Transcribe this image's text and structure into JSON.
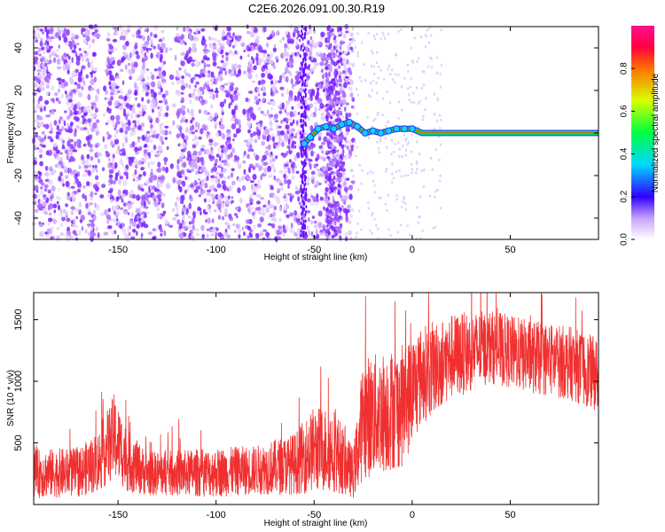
{
  "title": "C2E6.2026.091.00.30.R19",
  "colors": {
    "axis": "#000000",
    "signal_top": "#7b1fff",
    "snr_line": "#f03030",
    "background": "#ffffff"
  },
  "chart_data": [
    {
      "type": "heatmap",
      "name": "spectrogram",
      "xlabel": "Height of straight line (km)",
      "ylabel": "Frequency (Hz)",
      "xlim": [
        -193,
        95
      ],
      "ylim": [
        -50,
        50
      ],
      "x_ticks": [
        -150,
        -100,
        -50,
        0,
        50
      ],
      "y_ticks": [
        -40,
        -20,
        0,
        20,
        40
      ],
      "noise_region_x": [
        -193,
        -30
      ],
      "sparse_region_x": [
        -30,
        15
      ],
      "signal_start_x": -55,
      "signal_trace": [
        {
          "x": -55,
          "y": -5
        },
        {
          "x": -52,
          "y": -2
        },
        {
          "x": -48,
          "y": 2
        },
        {
          "x": -44,
          "y": 3
        },
        {
          "x": -40,
          "y": 2
        },
        {
          "x": -36,
          "y": 4
        },
        {
          "x": -32,
          "y": 5
        },
        {
          "x": -28,
          "y": 3
        },
        {
          "x": -24,
          "y": 0
        },
        {
          "x": -20,
          "y": 1
        },
        {
          "x": -16,
          "y": 0
        },
        {
          "x": -12,
          "y": 1
        },
        {
          "x": -8,
          "y": 2
        },
        {
          "x": -4,
          "y": 2
        },
        {
          "x": 0,
          "y": 2
        },
        {
          "x": 5,
          "y": 0
        },
        {
          "x": 95,
          "y": 0
        }
      ],
      "colorbar": {
        "label": "Normalized spectral amplitude",
        "range": [
          0,
          1
        ],
        "ticks": [
          0.0,
          0.2,
          0.4,
          0.6,
          0.8
        ],
        "tick_labels": [
          "0.0",
          "0.2",
          "0.4",
          "0.6",
          "0.8"
        ]
      }
    },
    {
      "type": "line",
      "name": "snr",
      "xlabel": "Height of straight line (km)",
      "ylabel": "SNR (10 * v/v)",
      "xlim": [
        -193,
        95
      ],
      "ylim": [
        0,
        1720
      ],
      "x_ticks": [
        -150,
        -100,
        -50,
        0,
        50
      ],
      "y_ticks": [
        500,
        1000,
        1500
      ],
      "envelope": [
        {
          "x": -193,
          "mean": 250,
          "spread": 200
        },
        {
          "x": -170,
          "mean": 260,
          "spread": 200
        },
        {
          "x": -160,
          "mean": 350,
          "spread": 250
        },
        {
          "x": -152,
          "mean": 550,
          "spread": 350
        },
        {
          "x": -145,
          "mean": 350,
          "spread": 250
        },
        {
          "x": -135,
          "mean": 250,
          "spread": 180
        },
        {
          "x": -100,
          "mean": 260,
          "spread": 200
        },
        {
          "x": -80,
          "mean": 280,
          "spread": 200
        },
        {
          "x": -60,
          "mean": 330,
          "spread": 250
        },
        {
          "x": -50,
          "mean": 450,
          "spread": 350
        },
        {
          "x": -40,
          "mean": 450,
          "spread": 350
        },
        {
          "x": -30,
          "mean": 250,
          "spread": 200
        },
        {
          "x": -25,
          "mean": 700,
          "spread": 500
        },
        {
          "x": -15,
          "mean": 750,
          "spread": 500
        },
        {
          "x": -5,
          "mean": 800,
          "spread": 500
        },
        {
          "x": 5,
          "mean": 1050,
          "spread": 400
        },
        {
          "x": 20,
          "mean": 1200,
          "spread": 350
        },
        {
          "x": 40,
          "mean": 1280,
          "spread": 300
        },
        {
          "x": 60,
          "mean": 1200,
          "spread": 300
        },
        {
          "x": 80,
          "mean": 1150,
          "spread": 300
        },
        {
          "x": 95,
          "mean": 1050,
          "spread": 300
        }
      ]
    }
  ]
}
